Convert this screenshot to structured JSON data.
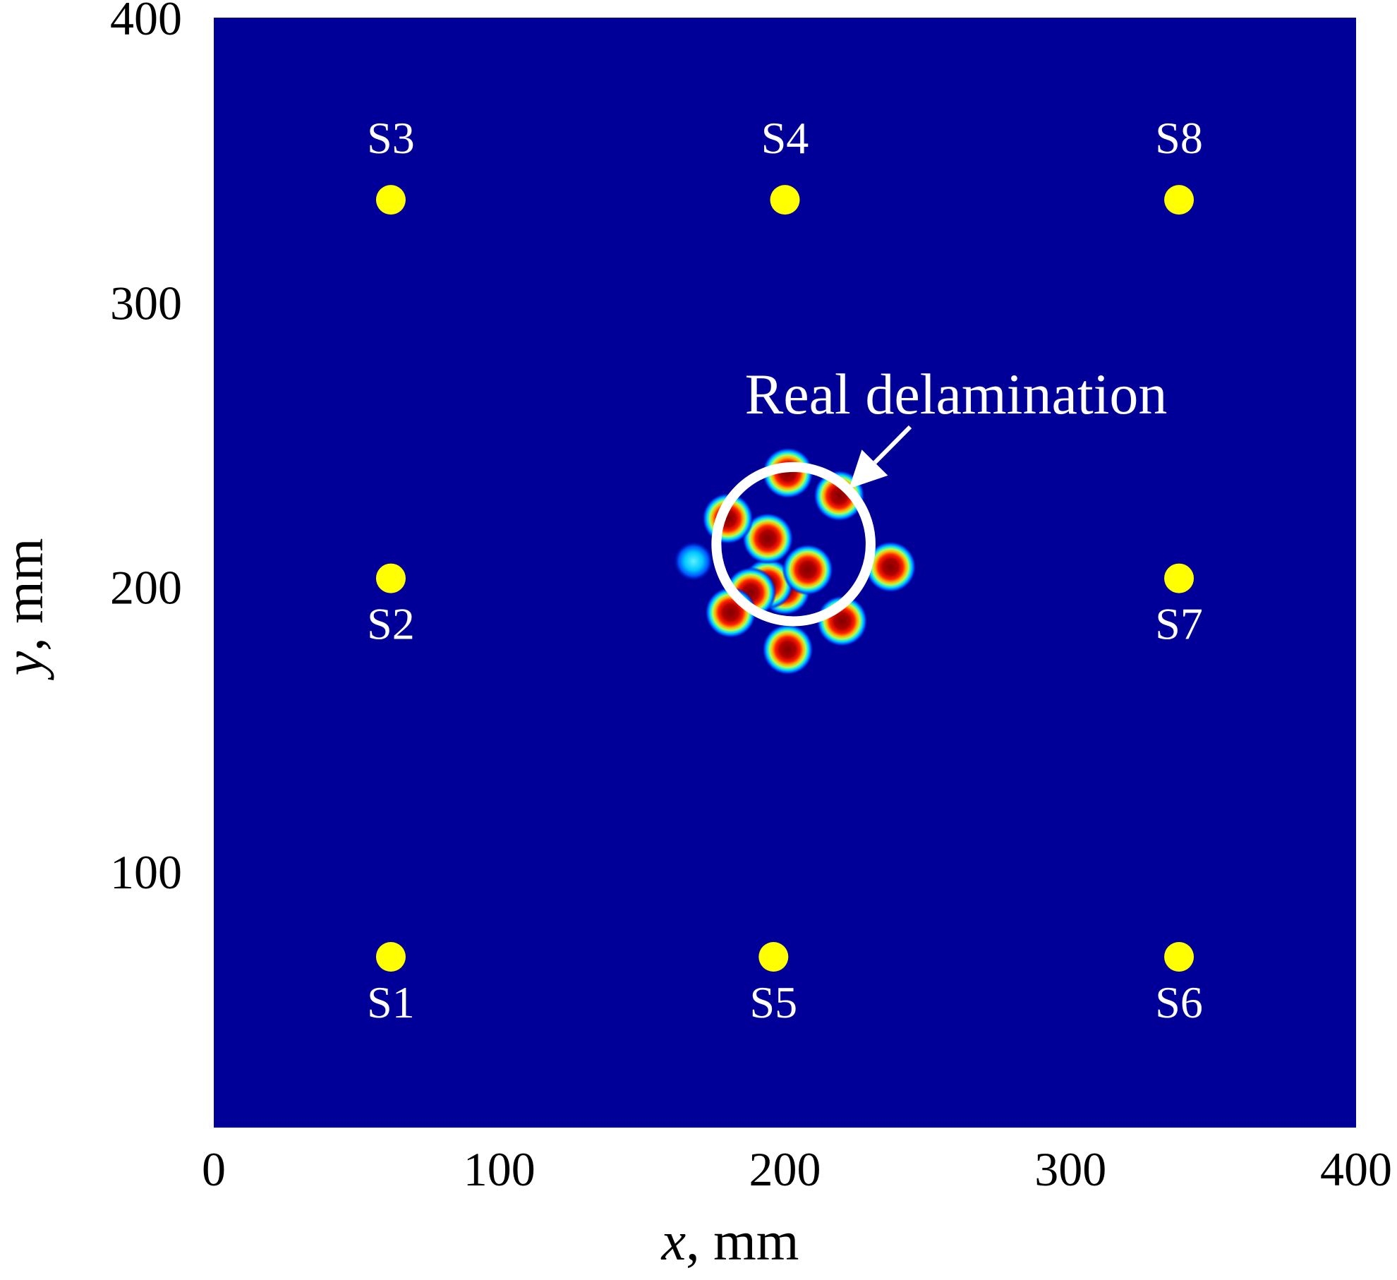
{
  "chart_data": {
    "type": "heatmap",
    "title": "",
    "xlabel": {
      "var": "x",
      "unit": ", mm"
    },
    "ylabel": {
      "var": "y",
      "unit": ", mm"
    },
    "xlim": [
      0,
      400
    ],
    "ylim": [
      10,
      400
    ],
    "x_ticks": [
      "0",
      "100",
      "200",
      "300",
      "400"
    ],
    "y_ticks": [
      "100",
      "200",
      "300",
      "400"
    ],
    "grid": false,
    "colors": {
      "background": "#000099",
      "sensor": "#ffff00",
      "annotation": "#ffffff"
    },
    "colormap": "jet",
    "sensors": [
      {
        "name": "S1",
        "x": 62,
        "y": 70,
        "label_pos": "below"
      },
      {
        "name": "S2",
        "x": 62,
        "y": 203,
        "label_pos": "below"
      },
      {
        "name": "S3",
        "x": 62,
        "y": 336,
        "label_pos": "above"
      },
      {
        "name": "S4",
        "x": 200,
        "y": 336,
        "label_pos": "above"
      },
      {
        "name": "S5",
        "x": 196,
        "y": 70,
        "label_pos": "below"
      },
      {
        "name": "S6",
        "x": 338,
        "y": 70,
        "label_pos": "below"
      },
      {
        "name": "S7",
        "x": 338,
        "y": 203,
        "label_pos": "below"
      },
      {
        "name": "S8",
        "x": 338,
        "y": 336,
        "label_pos": "above"
      }
    ],
    "damage_spots": [
      {
        "x": 200,
        "y": 199,
        "intensity": 1.0
      },
      {
        "x": 194,
        "y": 201,
        "intensity": 0.95
      },
      {
        "x": 188,
        "y": 198,
        "intensity": 0.85
      },
      {
        "x": 194,
        "y": 217,
        "intensity": 0.9
      },
      {
        "x": 208,
        "y": 206,
        "intensity": 0.8
      },
      {
        "x": 180,
        "y": 224,
        "intensity": 0.8
      },
      {
        "x": 201,
        "y": 240,
        "intensity": 0.85
      },
      {
        "x": 219,
        "y": 232,
        "intensity": 0.95
      },
      {
        "x": 237,
        "y": 207,
        "intensity": 0.95
      },
      {
        "x": 181,
        "y": 191,
        "intensity": 0.95
      },
      {
        "x": 220,
        "y": 188,
        "intensity": 0.9
      },
      {
        "x": 201,
        "y": 178,
        "intensity": 0.9
      },
      {
        "x": 168,
        "y": 209,
        "intensity": 0.4
      }
    ],
    "annotation": {
      "text": "Real delamination",
      "circle_center": {
        "x": 203,
        "y": 215
      },
      "circle_radius": 27
    }
  }
}
